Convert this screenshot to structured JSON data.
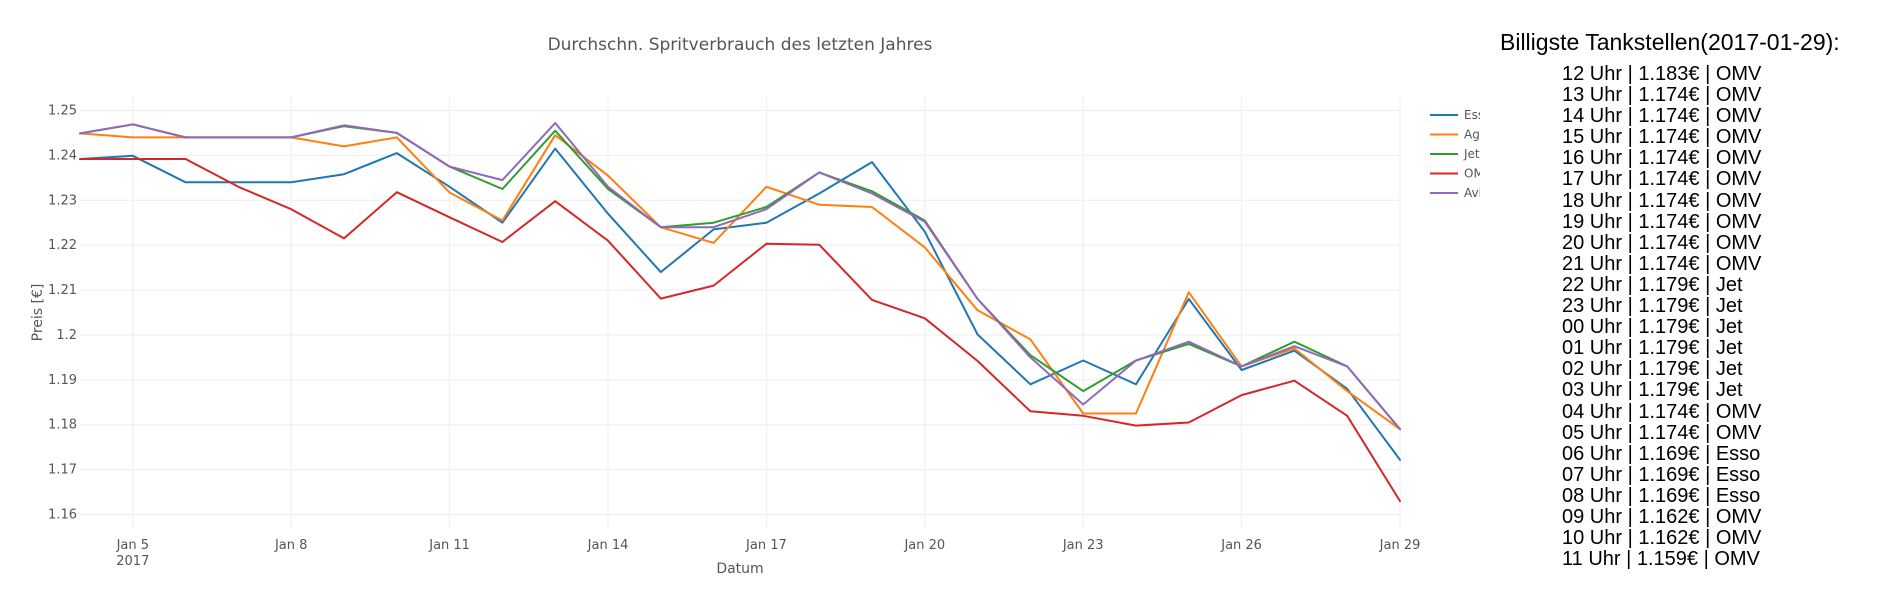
{
  "chart_data": {
    "type": "line",
    "title": "Durchschn. Spritverbrauch des letzten Jahres",
    "xlabel": "Datum",
    "ylabel": "Preis [€]",
    "x": [
      "2017-01-04",
      "2017-01-05",
      "2017-01-06",
      "2017-01-07",
      "2017-01-08",
      "2017-01-09",
      "2017-01-10",
      "2017-01-11",
      "2017-01-12",
      "2017-01-13",
      "2017-01-14",
      "2017-01-15",
      "2017-01-16",
      "2017-01-17",
      "2017-01-18",
      "2017-01-19",
      "2017-01-20",
      "2017-01-21",
      "2017-01-22",
      "2017-01-23",
      "2017-01-24",
      "2017-01-25",
      "2017-01-26",
      "2017-01-27",
      "2017-01-28",
      "2017-01-29"
    ],
    "x_ticks": [
      {
        "date": "2017-01-05",
        "label": "Jan 5",
        "sublabel": "2017"
      },
      {
        "date": "2017-01-08",
        "label": "Jan 8"
      },
      {
        "date": "2017-01-11",
        "label": "Jan 11"
      },
      {
        "date": "2017-01-14",
        "label": "Jan 14"
      },
      {
        "date": "2017-01-17",
        "label": "Jan 17"
      },
      {
        "date": "2017-01-20",
        "label": "Jan 20"
      },
      {
        "date": "2017-01-23",
        "label": "Jan 23"
      },
      {
        "date": "2017-01-26",
        "label": "Jan 26"
      },
      {
        "date": "2017-01-29",
        "label": "Jan 29"
      }
    ],
    "y_ticks": [
      {
        "value": 1.16,
        "label": "1.16"
      },
      {
        "value": 1.17,
        "label": "1.17"
      },
      {
        "value": 1.18,
        "label": "1.18"
      },
      {
        "value": 1.19,
        "label": "1.19"
      },
      {
        "value": 1.2,
        "label": "1.2"
      },
      {
        "value": 1.21,
        "label": "1.21"
      },
      {
        "value": 1.22,
        "label": "1.22"
      },
      {
        "value": 1.23,
        "label": "1.23"
      },
      {
        "value": 1.24,
        "label": "1.24"
      },
      {
        "value": 1.25,
        "label": "1.25"
      }
    ],
    "ylim": [
      1.157,
      1.253
    ],
    "xlim": [
      "2017-01-04",
      "2017-01-29"
    ],
    "grid": true,
    "legend_position": "right",
    "series": [
      {
        "name": "Esso",
        "color": "#1f77b4",
        "values": [
          1.2392,
          1.2399,
          1.234,
          1.234,
          1.234,
          1.2358,
          1.2405,
          1.233,
          1.225,
          1.2415,
          1.227,
          1.214,
          1.2235,
          1.225,
          1.2315,
          1.2385,
          1.223,
          1.2001,
          1.189,
          1.1943,
          1.189,
          1.208,
          1.1922,
          1.1965,
          1.188,
          1.1722
        ]
      },
      {
        "name": "Agip",
        "color": "#ff7f0e",
        "values": [
          1.2449,
          1.244,
          1.244,
          1.244,
          1.244,
          1.242,
          1.244,
          1.2317,
          1.2255,
          1.2445,
          1.2355,
          1.224,
          1.2205,
          1.233,
          1.229,
          1.2285,
          1.2195,
          1.2055,
          1.199,
          1.1825,
          1.1825,
          1.2095,
          1.193,
          1.197,
          1.1875,
          1.179
        ]
      },
      {
        "name": "Jet",
        "color": "#2ca02c",
        "values": [
          1.2449,
          1.2469,
          1.244,
          1.244,
          1.244,
          1.2465,
          1.245,
          1.2375,
          1.2325,
          1.2455,
          1.2325,
          1.224,
          1.225,
          1.2285,
          1.2362,
          1.232,
          1.2255,
          1.208,
          1.1955,
          1.1875,
          1.1943,
          1.198,
          1.193,
          1.1985,
          1.193,
          1.179
        ]
      },
      {
        "name": "OMV",
        "color": "#d62728",
        "values": [
          1.2392,
          1.2392,
          1.2392,
          1.233,
          1.228,
          1.2215,
          1.2318,
          1.2262,
          1.2207,
          1.2298,
          1.221,
          1.2081,
          1.211,
          1.2203,
          1.2201,
          1.2078,
          1.2037,
          1.1942,
          1.183,
          1.182,
          1.1798,
          1.1805,
          1.1866,
          1.1898,
          1.182,
          1.163
        ]
      },
      {
        "name": "Avia",
        "color": "#9467bd",
        "values": [
          1.2449,
          1.2469,
          1.244,
          1.244,
          1.244,
          1.2467,
          1.245,
          1.2375,
          1.2345,
          1.2472,
          1.233,
          1.224,
          1.224,
          1.228,
          1.2362,
          1.2315,
          1.2252,
          1.208,
          1.195,
          1.1845,
          1.1943,
          1.1985,
          1.193,
          1.1975,
          1.193,
          1.179
        ]
      }
    ]
  },
  "side_panel": {
    "title": "Billigste Tankstellen(2017-01-29):",
    "entries": [
      "12 Uhr | 1.183€ | OMV",
      "13 Uhr | 1.174€ | OMV",
      "14 Uhr | 1.174€ | OMV",
      "15 Uhr | 1.174€ | OMV",
      "16 Uhr | 1.174€ | OMV",
      "17 Uhr | 1.174€ | OMV",
      "18 Uhr | 1.174€ | OMV",
      "19 Uhr | 1.174€ | OMV",
      "20 Uhr | 1.174€ | OMV",
      "21 Uhr | 1.174€ | OMV",
      "22 Uhr | 1.179€ | Jet",
      "23 Uhr | 1.179€ | Jet",
      "00 Uhr | 1.179€ | Jet",
      "01 Uhr | 1.179€ | Jet",
      "02 Uhr | 1.179€ | Jet",
      "03 Uhr | 1.179€ | Jet",
      "04 Uhr | 1.174€ | OMV",
      "05 Uhr | 1.174€ | OMV",
      "06 Uhr | 1.169€ | Esso",
      "07 Uhr | 1.169€ | Esso",
      "08 Uhr | 1.169€ | Esso",
      "09 Uhr | 1.162€ | OMV",
      "10 Uhr | 1.162€ | OMV",
      "11 Uhr | 1.159€ | OMV"
    ]
  }
}
